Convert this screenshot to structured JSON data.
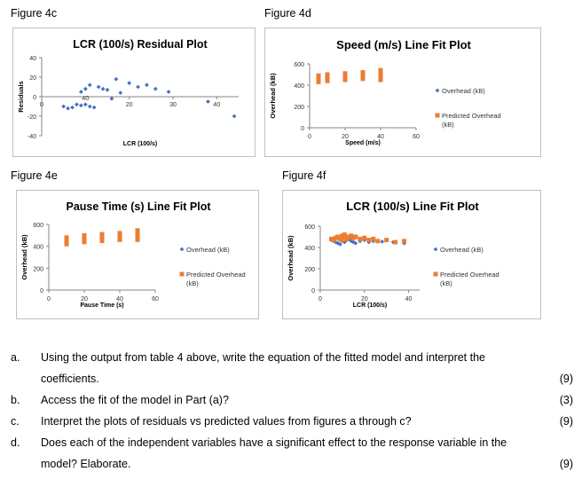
{
  "figures": {
    "f4c": {
      "label": "Figure 4c",
      "chart_data": {
        "type": "scatter",
        "title": "LCR (100/s) Residual Plot",
        "xlabel": "LCR (100/s)",
        "ylabel": "Residuals",
        "xlim": [
          0,
          45
        ],
        "ylim": [
          -40,
          40
        ],
        "xticks": [
          "0",
          "20",
          "30",
          "40"
        ],
        "xtick_values": [
          0,
          20,
          30,
          40
        ],
        "yticks": [
          "40",
          "20",
          "0",
          "-20",
          "-40"
        ],
        "ytick_values": [
          40,
          20,
          0,
          -20,
          -40
        ],
        "inline_x_label": "40",
        "series": [
          {
            "name": "Residuals",
            "color": "#4472c4",
            "x": [
              5,
              6,
              7,
              8,
              9,
              10,
              11,
              9,
              10,
              11,
              12,
              13,
              14,
              15,
              16,
              17,
              18,
              20,
              22,
              24,
              26,
              29,
              38,
              44
            ],
            "y": [
              -10,
              -12,
              -11,
              -8,
              5,
              8,
              12,
              -9,
              -8,
              -10,
              -11,
              10,
              8,
              7,
              -2,
              18,
              4,
              14,
              10,
              12,
              8,
              5,
              -5,
              -20
            ]
          }
        ]
      }
    },
    "f4d": {
      "label": "Figure 4d",
      "chart_data": {
        "type": "scatter",
        "title": "Speed (m/s) Line Fit Plot",
        "xlabel": "Speed (m/s)",
        "ylabel": "Overhead (kB)",
        "xlim": [
          0,
          60
        ],
        "ylim": [
          0,
          600
        ],
        "xticks": [
          "0",
          "20",
          "40",
          "60"
        ],
        "xtick_values": [
          0,
          20,
          40,
          60
        ],
        "yticks": [
          "600",
          "400",
          "200",
          "0"
        ],
        "ytick_values": [
          600,
          400,
          200,
          0
        ],
        "series": [
          {
            "name": "Overhead (kB)",
            "color": "#4472c4",
            "x": [
              5,
              5,
              10,
              10,
              20,
              20,
              30,
              30,
              40,
              40
            ],
            "y": [
              430,
              460,
              440,
              480,
              450,
              490,
              460,
              500,
              445,
              510
            ]
          },
          {
            "name": "Predicted Overhead (kB)",
            "color": "#ed7d31",
            "x": [
              5,
              5,
              5,
              10,
              10,
              10,
              20,
              20,
              20,
              30,
              30,
              30,
              40,
              40,
              40,
              40
            ],
            "y": [
              430,
              460,
              490,
              440,
              470,
              500,
              450,
              480,
              510,
              460,
              490,
              520,
              450,
              480,
              510,
              540
            ]
          }
        ]
      }
    },
    "f4e": {
      "label": "Figure 4e",
      "chart_data": {
        "type": "scatter",
        "title": "Pause Time (s) Line Fit Plot",
        "xlabel": "Pause Time (s)",
        "ylabel": "Overhead (kB)",
        "xlim": [
          0,
          60
        ],
        "ylim": [
          0,
          600
        ],
        "xticks": [
          "0",
          "20",
          "40",
          "60"
        ],
        "xtick_values": [
          0,
          20,
          40,
          60
        ],
        "yticks": [
          "600",
          "400",
          "200",
          "0"
        ],
        "ytick_values": [
          600,
          400,
          200,
          0
        ],
        "series": [
          {
            "name": "Overhead (kB)",
            "color": "#4472c4",
            "x": [
              10,
              10,
              20,
              20,
              30,
              30,
              40,
              40,
              50,
              50
            ],
            "y": [
              440,
              470,
              450,
              480,
              460,
              490,
              470,
              500,
              480,
              510
            ]
          },
          {
            "name": "Predicted Overhead (kB)",
            "color": "#ed7d31",
            "x": [
              10,
              10,
              10,
              20,
              20,
              20,
              30,
              30,
              30,
              40,
              40,
              40,
              50,
              50,
              50,
              50
            ],
            "y": [
              420,
              450,
              480,
              440,
              470,
              500,
              450,
              480,
              510,
              460,
              490,
              520,
              460,
              490,
              520,
              545
            ]
          }
        ]
      }
    },
    "f4f": {
      "label": "Figure 4f",
      "chart_data": {
        "type": "scatter",
        "title": "LCR (100/s) Line Fit Plot",
        "xlabel": "LCR (100/s)",
        "ylabel": "Overhead (kB)",
        "xlim": [
          0,
          45
        ],
        "ylim": [
          0,
          600
        ],
        "xticks": [
          "0",
          "20",
          "40"
        ],
        "xtick_values": [
          0,
          20,
          40
        ],
        "yticks": [
          "600",
          "400",
          "200",
          "0"
        ],
        "ytick_values": [
          600,
          400,
          200,
          0
        ],
        "series": [
          {
            "name": "Overhead (kB)",
            "color": "#4472c4",
            "x": [
              5,
              6,
              7,
              8,
              9,
              10,
              11,
              12,
              13,
              14,
              15,
              16,
              18,
              20,
              22,
              24,
              28,
              33,
              38
            ],
            "y": [
              470,
              460,
              450,
              440,
              430,
              460,
              450,
              470,
              480,
              460,
              450,
              440,
              460,
              470,
              450,
              460,
              455,
              450,
              440
            ]
          },
          {
            "name": "Predicted Overhead (kB)",
            "color": "#ed7d31",
            "x": [
              5,
              6,
              7,
              8,
              9,
              10,
              10,
              11,
              11,
              12,
              12,
              13,
              14,
              15,
              16,
              18,
              20,
              22,
              24,
              26,
              30,
              34,
              38
            ],
            "y": [
              480,
              470,
              490,
              500,
              480,
              510,
              470,
              500,
              520,
              490,
              480,
              500,
              510,
              490,
              500,
              480,
              490,
              470,
              480,
              460,
              470,
              450,
              460
            ]
          }
        ]
      }
    }
  },
  "questions": [
    {
      "letter": "a.",
      "lines": [
        "Using the output from table 4 above, write the equation of the fitted model and interpret the",
        "coefficients."
      ],
      "marks": "(9)"
    },
    {
      "letter": "b.",
      "lines": [
        "Access the fit of the model in Part (a)?"
      ],
      "marks": "(3)"
    },
    {
      "letter": "c.",
      "lines": [
        "Interpret the plots of residuals vs predicted values from figures a through c?"
      ],
      "marks": "(9)"
    },
    {
      "letter": "d.",
      "lines": [
        "Does each of the independent variables have a significant effect to the response variable in the",
        "model? Elaborate."
      ],
      "marks": "(9)"
    }
  ]
}
